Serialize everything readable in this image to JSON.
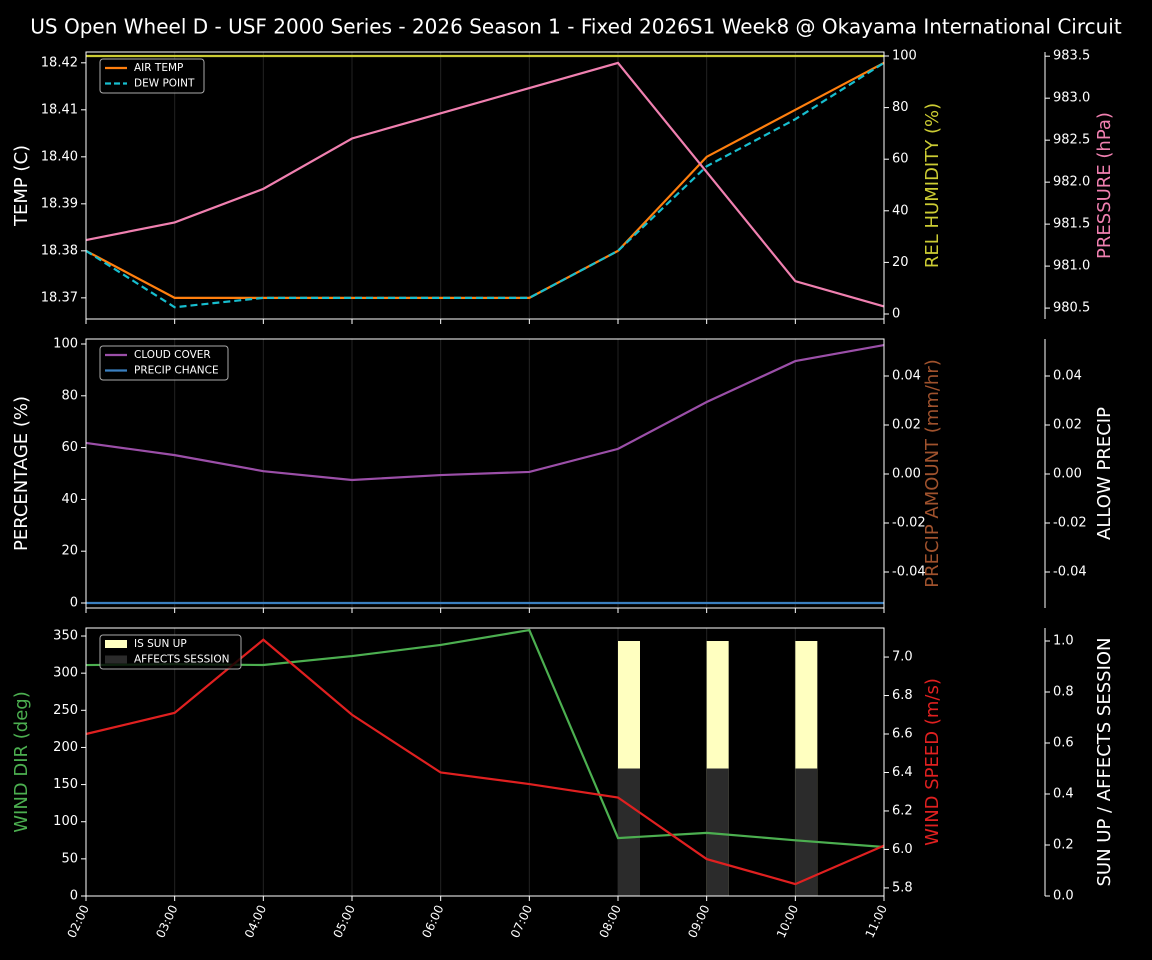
{
  "title": "US Open Wheel D - USF 2000 Series  - 2026 Season 1 - Fixed 2026S1 Week8 @ Okayama International Circuit",
  "chart_data": [
    {
      "type": "line",
      "grid": true,
      "legend": "upper left",
      "ylabel": "TEMP (C)",
      "ylabel_color": "#ffffff",
      "y2label": "REL HUMIDITY (%)",
      "y2label_color": "#cccc33",
      "y3label": "PRESSURE (hPa)",
      "y3label_color": "#f080b0",
      "ylim": [
        18.3655,
        18.4223
      ],
      "yticks": [
        18.37,
        18.38,
        18.39,
        {
          "value": 18.4,
          "label": "18.40"
        },
        18.41,
        18.42
      ],
      "y2lim": [
        -1.94,
        101.55
      ],
      "y2ticks": [
        0,
        20,
        40,
        60,
        80,
        100
      ],
      "y3lim": [
        980.37,
        983.55
      ],
      "y3ticks": [
        980.5,
        {
          "value": 981,
          "label": "981.0"
        },
        981.5,
        {
          "value": 982,
          "label": "982.0"
        },
        982.5,
        {
          "value": 983,
          "label": "983.0"
        },
        983.5
      ],
      "series": [
        {
          "name": "AIR TEMP",
          "color": "#ff7f0e",
          "values": [
            18.38,
            18.37,
            18.37,
            18.37,
            18.37,
            18.37,
            18.38,
            18.4,
            18.41,
            18.42
          ]
        },
        {
          "name": "DEW POINT",
          "color": "#17becf",
          "dash": true,
          "values": [
            18.38,
            18.368,
            18.37,
            18.37,
            18.37,
            18.37,
            18.38,
            18.398,
            18.408,
            18.42
          ]
        },
        {
          "color": "#cccc33",
          "axis": "y2",
          "values": [
            100,
            100,
            100,
            100,
            100,
            100,
            100,
            100,
            100,
            100
          ]
        },
        {
          "color": "#f080b0",
          "axis": "y3",
          "values": [
            981.31,
            981.52,
            981.92,
            982.52,
            982.82,
            983.12,
            983.42,
            982.12,
            980.82,
            980.52
          ]
        }
      ]
    },
    {
      "type": "line",
      "grid": true,
      "legend": "upper left",
      "ylabel": "PERCENTAGE (%)",
      "ylabel_color": "#ffffff",
      "y2label": "PRECIP AMOUNT (mm/hr)",
      "y2label_color": "#a0522d",
      "y3label": "ALLOW PRECIP",
      "y3label_color": "#ffffff",
      "ylim": [
        -1.93,
        101.93
      ],
      "yticks": [
        0,
        20,
        40,
        60,
        80,
        100
      ],
      "y2lim": [
        -0.0547,
        0.0551
      ],
      "y2ticks": [
        -0.04,
        -0.02,
        {
          "value": 0,
          "label": "0.00"
        },
        0.02,
        0.04
      ],
      "y3lim": [
        -0.0547,
        0.0551
      ],
      "y3ticks": [
        -0.04,
        -0.02,
        {
          "value": 0,
          "label": "0.00"
        },
        0.02,
        0.04
      ],
      "series": [
        {
          "name": "CLOUD COVER",
          "color": "#9b4fa8",
          "values": [
            61.8,
            57.1,
            50.9,
            47.5,
            49.4,
            50.6,
            59.5,
            77.6,
            93.4,
            99.6
          ]
        },
        {
          "name": "PRECIP CHANCE",
          "color": "#3a7fc0",
          "values": [
            0,
            0,
            0,
            0,
            0,
            0,
            0,
            0,
            0,
            0
          ]
        }
      ]
    },
    {
      "type": "line",
      "grid": true,
      "legend": "upper left",
      "categories": [
        "02:00",
        "03:00",
        "04:00",
        "05:00",
        "06:00",
        "07:00",
        "08:00",
        "09:00",
        "10:00",
        "11:00"
      ],
      "ylabel": "WIND DIR (deg)",
      "ylabel_color": "#4caf50",
      "y2label": "WIND SPEED (m/s)",
      "y2label_color": "#e02020",
      "y3label": "SUN UP / AFFECTS SESSION",
      "y3label_color": "#ffffff",
      "ylim": [
        0,
        360.8
      ],
      "yticks": [
        0,
        50,
        100,
        150,
        200,
        250,
        300,
        350
      ],
      "y2lim": [
        5.758,
        7.151
      ],
      "y2ticks": [
        5.8,
        {
          "value": 6,
          "label": "6.0"
        },
        6.2,
        6.4,
        6.6,
        6.8,
        {
          "value": 7,
          "label": "7.0"
        }
      ],
      "y3lim": [
        0,
        1.051
      ],
      "y3ticks": [
        {
          "value": 0,
          "label": "0.0"
        },
        0.2,
        0.4,
        0.6,
        0.8,
        {
          "value": 1,
          "label": "1.0"
        }
      ],
      "series": [
        {
          "name": "IS SUN UP",
          "type": "bar",
          "color": "#ffffc0",
          "axis": "y3",
          "values": [
            0,
            0,
            0,
            0,
            0,
            0,
            1,
            1,
            1,
            0
          ]
        },
        {
          "name": "AFFECTS SESSION",
          "type": "bar",
          "color": "#2b2b2b",
          "axis": "y3",
          "values": [
            0,
            0,
            0,
            0,
            0,
            0,
            0.5,
            0.5,
            0.5,
            0
          ]
        },
        {
          "color": "#4caf50",
          "values": [
            310.9,
            312,
            311,
            323,
            338,
            358,
            78,
            85,
            75,
            66
          ]
        },
        {
          "color": "#e02020",
          "axis": "y2",
          "values": [
            6.6,
            6.71,
            7.09,
            6.7,
            6.4,
            6.34,
            6.27,
            5.95,
            5.82,
            6.02
          ]
        }
      ]
    }
  ]
}
